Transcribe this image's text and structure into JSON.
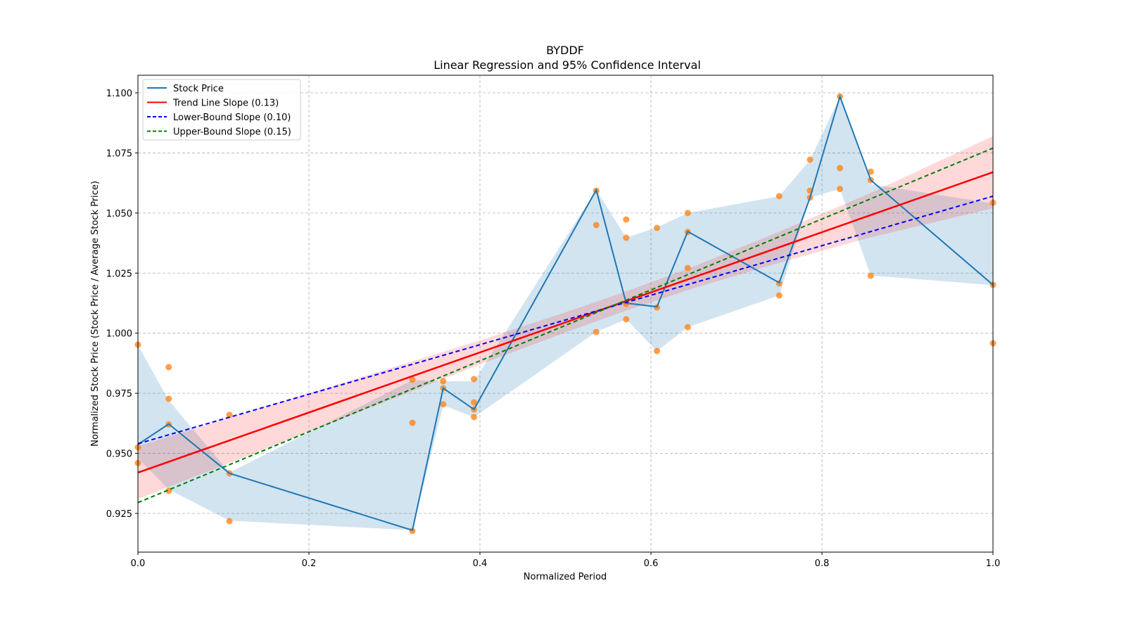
{
  "chart_data": {
    "type": "line",
    "title": "BYDDF",
    "subtitle": "Linear Regression and 95% Confidence Interval",
    "xlabel": "Normalized Period",
    "ylabel": "Normalized Stock Price (Stock Price / Average Stock Price)",
    "xlim": [
      0.0,
      1.0
    ],
    "ylim": [
      0.909,
      1.107
    ],
    "grid": true,
    "legend_position": "top-left",
    "x_ticks": [
      "0.0",
      "0.2",
      "0.4",
      "0.6",
      "0.8",
      "1.0"
    ],
    "y_ticks": [
      "0.925",
      "0.950",
      "0.975",
      "1.000",
      "1.025",
      "1.050",
      "1.075",
      "1.100"
    ],
    "legend": [
      {
        "label": "Stock Price",
        "color": "#1f77b4",
        "style": "solid"
      },
      {
        "label": "Trend Line Slope (0.13)",
        "color": "#ff0000",
        "style": "solid"
      },
      {
        "label": "Lower-Bound Slope (0.10)",
        "color": "#0000ff",
        "style": "dashed"
      },
      {
        "label": "Upper-Bound Slope (0.15)",
        "color": "#008000",
        "style": "dashed"
      }
    ],
    "stock_price": {
      "x": [
        0,
        0.036,
        0.107,
        0.321,
        0.357,
        0.393,
        0.536,
        0.571,
        0.607,
        0.643,
        0.75,
        0.786,
        0.821,
        0.857,
        1.0
      ],
      "y": [
        0.9537,
        0.9622,
        0.9417,
        0.918,
        0.9771,
        0.9683,
        1.0596,
        1.0125,
        1.011,
        1.0423,
        1.021,
        1.0564,
        1.0985,
        1.0637,
        1.0201
      ],
      "band_upper": [
        0.995,
        0.972,
        0.942,
        0.9805,
        0.98,
        0.98,
        1.0596,
        1.0397,
        1.044,
        1.05,
        1.057,
        1.072,
        1.0985,
        1.062,
        1.054
      ],
      "band_lower": [
        0.948,
        0.935,
        0.922,
        0.918,
        0.97,
        0.965,
        1.0005,
        1.0058,
        0.9926,
        1.0025,
        1.0157,
        1.0564,
        1.06,
        1.024,
        1.02
      ]
    },
    "scatter": [
      [
        0,
        0.9952
      ],
      [
        0,
        0.9525
      ],
      [
        0,
        0.946
      ],
      [
        0.036,
        0.9859
      ],
      [
        0.036,
        0.9727
      ],
      [
        0.036,
        0.962
      ],
      [
        0.036,
        0.9344
      ],
      [
        0.107,
        0.966
      ],
      [
        0.107,
        0.9417
      ],
      [
        0.107,
        0.9218
      ],
      [
        0.321,
        0.9806
      ],
      [
        0.321,
        0.9627
      ],
      [
        0.321,
        0.9177
      ],
      [
        0.357,
        0.98
      ],
      [
        0.357,
        0.9771
      ],
      [
        0.357,
        0.9704
      ],
      [
        0.393,
        0.9809
      ],
      [
        0.393,
        0.9712
      ],
      [
        0.393,
        0.9683
      ],
      [
        0.393,
        0.9651
      ],
      [
        0.536,
        1.0593
      ],
      [
        0.536,
        1.045
      ],
      [
        0.536,
        1.0005
      ],
      [
        0.571,
        1.0473
      ],
      [
        0.571,
        1.0397
      ],
      [
        0.571,
        1.0122
      ],
      [
        0.571,
        1.0058
      ],
      [
        0.607,
        1.0438
      ],
      [
        0.607,
        1.0107
      ],
      [
        0.607,
        0.9926
      ],
      [
        0.643,
        1.05
      ],
      [
        0.643,
        1.0421
      ],
      [
        0.643,
        1.0271
      ],
      [
        0.643,
        1.0025
      ],
      [
        0.75,
        1.057
      ],
      [
        0.75,
        1.0207
      ],
      [
        0.75,
        1.0157
      ],
      [
        0.786,
        1.0722
      ],
      [
        0.786,
        1.0593
      ],
      [
        0.786,
        1.0564
      ],
      [
        0.821,
        1.0985
      ],
      [
        0.821,
        1.0687
      ],
      [
        0.821,
        1.06
      ],
      [
        0.857,
        1.0672
      ],
      [
        0.857,
        1.0637
      ],
      [
        0.857,
        1.0239
      ],
      [
        1.0,
        1.0543
      ],
      [
        1.0,
        1.0201
      ],
      [
        1.0,
        0.9958
      ]
    ],
    "trend_line": {
      "y_at_0": 0.942,
      "y_at_1": 1.067
    },
    "lower_bound_line": {
      "y_at_0": 0.954,
      "y_at_1": 1.057
    },
    "upper_bound_line": {
      "y_at_0": 0.9295,
      "y_at_1": 1.077
    },
    "trend_ci": {
      "x": [
        0,
        0.1,
        0.2,
        0.3,
        0.4,
        0.5,
        0.57,
        0.65,
        0.75,
        0.85,
        1.0
      ],
      "half_width": [
        0.011,
        0.0095,
        0.008,
        0.0065,
        0.005,
        0.0042,
        0.004,
        0.0045,
        0.0065,
        0.009,
        0.015
      ]
    },
    "colors": {
      "scatter": "#ff7f0e",
      "band": "#1f77b4",
      "ci": "#ff0000"
    }
  }
}
